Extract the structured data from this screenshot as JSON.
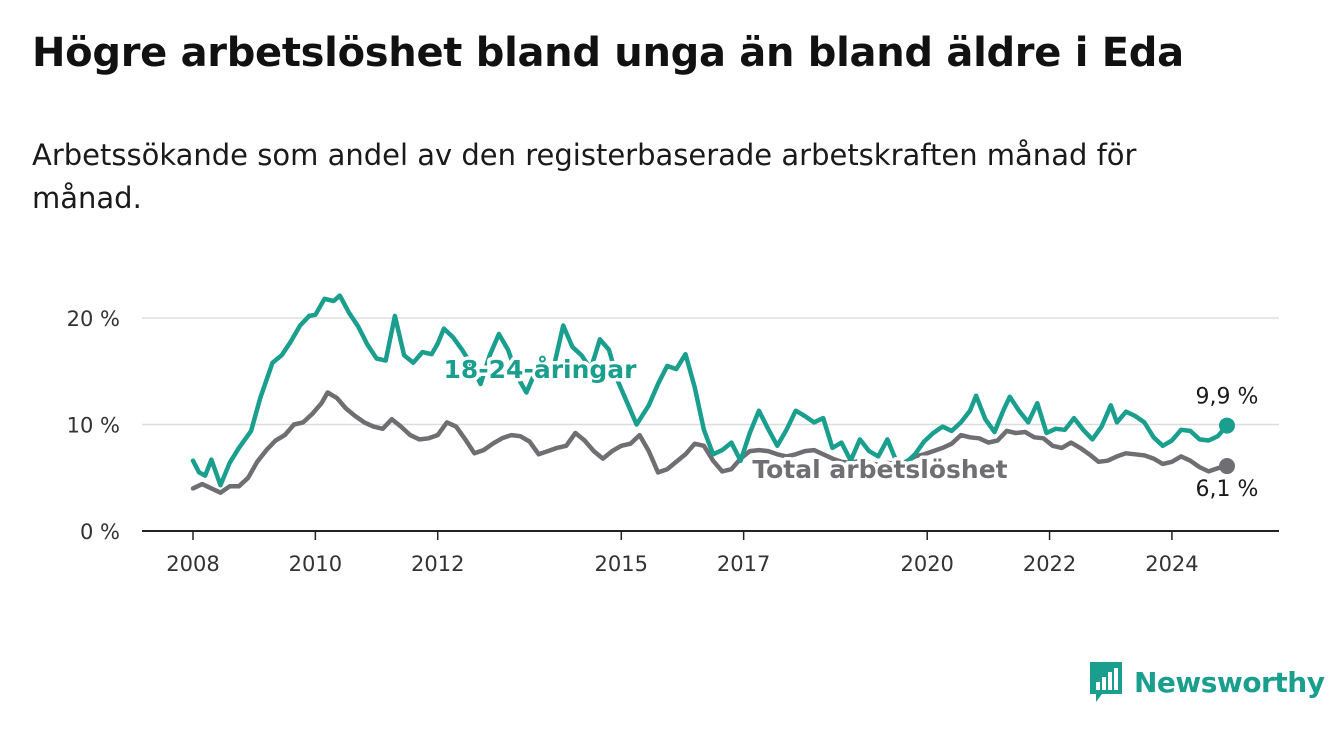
{
  "title": "Högre arbetslöshet bland unga än bland äldre i Eda",
  "subtitle": "Arbetssökande som andel av den registerbaserade arbetskraften månad för månad.",
  "logo": {
    "text": "Newsworthy",
    "icon": "bar-chart-icon"
  },
  "colors": {
    "youth": "#1a9e8e",
    "total": "#6e6e73",
    "grid": "#dddddd",
    "axis": "#222222",
    "label_halo": "#ffffff"
  },
  "chart_data": {
    "type": "line",
    "title": "Högre arbetslöshet bland unga än bland äldre i Eda",
    "subtitle": "Arbetssökande som andel av den registerbaserade arbetskraften månad för månad.",
    "xlabel": "",
    "ylabel": "",
    "x_range": [
      2008.0,
      2024.9
    ],
    "ylim": [
      0,
      22
    ],
    "y_ticks": [
      0,
      10,
      20
    ],
    "y_tick_labels": [
      "0 %",
      "10 %",
      "20 %"
    ],
    "x_ticks": [
      2008,
      2010,
      2012,
      2015,
      2017,
      2020,
      2022,
      2024
    ],
    "x_tick_labels": [
      "2008",
      "2010",
      "2012",
      "2015",
      "2017",
      "2020",
      "2022",
      "2024"
    ],
    "grid": "horizontal",
    "legend": "inline labels",
    "series": [
      {
        "name": "18-24-åringar",
        "color": "#1a9e8e",
        "end_label": "9,9 %",
        "end_value": 9.9,
        "points": [
          [
            2008.0,
            6.6
          ],
          [
            2008.1,
            5.5
          ],
          [
            2008.2,
            5.2
          ],
          [
            2008.3,
            6.7
          ],
          [
            2008.45,
            4.3
          ],
          [
            2008.6,
            6.4
          ],
          [
            2008.75,
            7.8
          ],
          [
            2008.95,
            9.4
          ],
          [
            2009.1,
            12.5
          ],
          [
            2009.3,
            15.8
          ],
          [
            2009.45,
            16.5
          ],
          [
            2009.6,
            17.8
          ],
          [
            2009.75,
            19.3
          ],
          [
            2009.9,
            20.2
          ],
          [
            2010.0,
            20.3
          ],
          [
            2010.15,
            21.8
          ],
          [
            2010.3,
            21.6
          ],
          [
            2010.4,
            22.1
          ],
          [
            2010.55,
            20.5
          ],
          [
            2010.7,
            19.2
          ],
          [
            2010.85,
            17.5
          ],
          [
            2011.0,
            16.2
          ],
          [
            2011.15,
            16.0
          ],
          [
            2011.3,
            20.2
          ],
          [
            2011.45,
            16.5
          ],
          [
            2011.6,
            15.8
          ],
          [
            2011.75,
            16.8
          ],
          [
            2011.9,
            16.6
          ],
          [
            2012.0,
            17.6
          ],
          [
            2012.1,
            19.0
          ],
          [
            2012.25,
            18.2
          ],
          [
            2012.4,
            17.0
          ],
          [
            2012.55,
            15.6
          ],
          [
            2012.7,
            13.8
          ],
          [
            2012.85,
            16.5
          ],
          [
            2013.0,
            18.5
          ],
          [
            2013.15,
            17.0
          ],
          [
            2013.3,
            14.5
          ],
          [
            2013.45,
            13.0
          ],
          [
            2013.6,
            15.0
          ],
          [
            2013.75,
            14.3
          ],
          [
            2013.9,
            15.5
          ],
          [
            2014.05,
            19.3
          ],
          [
            2014.2,
            17.3
          ],
          [
            2014.35,
            16.5
          ],
          [
            2014.5,
            15.2
          ],
          [
            2014.65,
            18.0
          ],
          [
            2014.8,
            17.0
          ],
          [
            2014.95,
            14.0
          ],
          [
            2015.1,
            12.0
          ],
          [
            2015.25,
            10.0
          ],
          [
            2015.45,
            11.8
          ],
          [
            2015.6,
            13.8
          ],
          [
            2015.75,
            15.5
          ],
          [
            2015.9,
            15.2
          ],
          [
            2016.05,
            16.6
          ],
          [
            2016.2,
            13.5
          ],
          [
            2016.35,
            9.5
          ],
          [
            2016.5,
            7.2
          ],
          [
            2016.65,
            7.6
          ],
          [
            2016.8,
            8.3
          ],
          [
            2016.95,
            6.6
          ],
          [
            2017.1,
            9.2
          ],
          [
            2017.25,
            11.3
          ],
          [
            2017.4,
            9.6
          ],
          [
            2017.55,
            8.0
          ],
          [
            2017.7,
            9.5
          ],
          [
            2017.85,
            11.3
          ],
          [
            2018.0,
            10.8
          ],
          [
            2018.15,
            10.2
          ],
          [
            2018.3,
            10.6
          ],
          [
            2018.45,
            7.8
          ],
          [
            2018.6,
            8.3
          ],
          [
            2018.75,
            6.6
          ],
          [
            2018.9,
            8.6
          ],
          [
            2019.05,
            7.5
          ],
          [
            2019.2,
            7.0
          ],
          [
            2019.35,
            8.6
          ],
          [
            2019.5,
            6.5
          ],
          [
            2019.65,
            6.4
          ],
          [
            2019.8,
            7.2
          ],
          [
            2019.95,
            8.4
          ],
          [
            2020.1,
            9.2
          ],
          [
            2020.25,
            9.8
          ],
          [
            2020.4,
            9.4
          ],
          [
            2020.55,
            10.2
          ],
          [
            2020.7,
            11.3
          ],
          [
            2020.8,
            12.7
          ],
          [
            2020.95,
            10.5
          ],
          [
            2021.1,
            9.3
          ],
          [
            2021.25,
            11.4
          ],
          [
            2021.35,
            12.6
          ],
          [
            2021.5,
            11.3
          ],
          [
            2021.65,
            10.2
          ],
          [
            2021.8,
            12.0
          ],
          [
            2021.95,
            9.2
          ],
          [
            2022.1,
            9.6
          ],
          [
            2022.25,
            9.5
          ],
          [
            2022.4,
            10.6
          ],
          [
            2022.55,
            9.5
          ],
          [
            2022.7,
            8.6
          ],
          [
            2022.85,
            9.8
          ],
          [
            2023.0,
            11.8
          ],
          [
            2023.1,
            10.2
          ],
          [
            2023.25,
            11.2
          ],
          [
            2023.4,
            10.8
          ],
          [
            2023.55,
            10.2
          ],
          [
            2023.7,
            8.8
          ],
          [
            2023.85,
            8.0
          ],
          [
            2024.0,
            8.5
          ],
          [
            2024.15,
            9.5
          ],
          [
            2024.3,
            9.4
          ],
          [
            2024.45,
            8.6
          ],
          [
            2024.6,
            8.5
          ],
          [
            2024.75,
            8.9
          ],
          [
            2024.9,
            9.9
          ]
        ]
      },
      {
        "name": "Total arbetslöshet",
        "color": "#6e6e73",
        "end_label": "6,1 %",
        "end_value": 6.1,
        "points": [
          [
            2008.0,
            4.0
          ],
          [
            2008.15,
            4.4
          ],
          [
            2008.3,
            4.0
          ],
          [
            2008.45,
            3.6
          ],
          [
            2008.6,
            4.2
          ],
          [
            2008.75,
            4.2
          ],
          [
            2008.9,
            5.0
          ],
          [
            2009.05,
            6.5
          ],
          [
            2009.2,
            7.6
          ],
          [
            2009.35,
            8.5
          ],
          [
            2009.5,
            9.0
          ],
          [
            2009.65,
            10.0
          ],
          [
            2009.8,
            10.2
          ],
          [
            2009.95,
            11.0
          ],
          [
            2010.1,
            12.0
          ],
          [
            2010.2,
            13.0
          ],
          [
            2010.35,
            12.5
          ],
          [
            2010.5,
            11.5
          ],
          [
            2010.65,
            10.8
          ],
          [
            2010.8,
            10.2
          ],
          [
            2010.95,
            9.8
          ],
          [
            2011.1,
            9.6
          ],
          [
            2011.25,
            10.5
          ],
          [
            2011.4,
            9.8
          ],
          [
            2011.55,
            9.0
          ],
          [
            2011.7,
            8.6
          ],
          [
            2011.85,
            8.7
          ],
          [
            2012.0,
            9.0
          ],
          [
            2012.15,
            10.2
          ],
          [
            2012.3,
            9.8
          ],
          [
            2012.45,
            8.6
          ],
          [
            2012.6,
            7.3
          ],
          [
            2012.75,
            7.6
          ],
          [
            2012.9,
            8.2
          ],
          [
            2013.05,
            8.7
          ],
          [
            2013.2,
            9.0
          ],
          [
            2013.35,
            8.9
          ],
          [
            2013.5,
            8.4
          ],
          [
            2013.65,
            7.2
          ],
          [
            2013.8,
            7.5
          ],
          [
            2013.95,
            7.8
          ],
          [
            2014.1,
            8.0
          ],
          [
            2014.25,
            9.2
          ],
          [
            2014.4,
            8.5
          ],
          [
            2014.55,
            7.5
          ],
          [
            2014.7,
            6.8
          ],
          [
            2014.85,
            7.5
          ],
          [
            2015.0,
            8.0
          ],
          [
            2015.15,
            8.2
          ],
          [
            2015.3,
            9.0
          ],
          [
            2015.45,
            7.5
          ],
          [
            2015.6,
            5.5
          ],
          [
            2015.75,
            5.8
          ],
          [
            2015.9,
            6.5
          ],
          [
            2016.05,
            7.2
          ],
          [
            2016.2,
            8.2
          ],
          [
            2016.35,
            8.0
          ],
          [
            2016.5,
            6.6
          ],
          [
            2016.65,
            5.6
          ],
          [
            2016.8,
            5.8
          ],
          [
            2016.95,
            6.8
          ],
          [
            2017.1,
            7.5
          ],
          [
            2017.25,
            7.6
          ],
          [
            2017.4,
            7.5
          ],
          [
            2017.55,
            7.2
          ],
          [
            2017.7,
            7.0
          ],
          [
            2017.85,
            7.2
          ],
          [
            2018.0,
            7.5
          ],
          [
            2018.15,
            7.6
          ],
          [
            2018.3,
            7.2
          ],
          [
            2018.45,
            6.8
          ],
          [
            2018.6,
            6.5
          ],
          [
            2018.75,
            6.4
          ],
          [
            2018.9,
            6.6
          ],
          [
            2019.05,
            6.4
          ],
          [
            2019.2,
            6.2
          ],
          [
            2019.35,
            6.4
          ],
          [
            2019.5,
            6.3
          ],
          [
            2019.65,
            6.5
          ],
          [
            2019.8,
            7.0
          ],
          [
            2019.95,
            7.2
          ],
          [
            2020.1,
            7.5
          ],
          [
            2020.25,
            7.8
          ],
          [
            2020.4,
            8.2
          ],
          [
            2020.55,
            9.0
          ],
          [
            2020.7,
            8.8
          ],
          [
            2020.85,
            8.7
          ],
          [
            2021.0,
            8.3
          ],
          [
            2021.15,
            8.5
          ],
          [
            2021.3,
            9.4
          ],
          [
            2021.45,
            9.2
          ],
          [
            2021.6,
            9.3
          ],
          [
            2021.75,
            8.8
          ],
          [
            2021.9,
            8.7
          ],
          [
            2022.05,
            8.0
          ],
          [
            2022.2,
            7.8
          ],
          [
            2022.35,
            8.3
          ],
          [
            2022.5,
            7.8
          ],
          [
            2022.65,
            7.2
          ],
          [
            2022.8,
            6.5
          ],
          [
            2022.95,
            6.6
          ],
          [
            2023.1,
            7.0
          ],
          [
            2023.25,
            7.3
          ],
          [
            2023.4,
            7.2
          ],
          [
            2023.55,
            7.1
          ],
          [
            2023.7,
            6.8
          ],
          [
            2023.85,
            6.3
          ],
          [
            2024.0,
            6.5
          ],
          [
            2024.15,
            7.0
          ],
          [
            2024.3,
            6.6
          ],
          [
            2024.45,
            6.0
          ],
          [
            2024.6,
            5.6
          ],
          [
            2024.75,
            5.9
          ],
          [
            2024.9,
            6.1
          ]
        ]
      }
    ]
  }
}
